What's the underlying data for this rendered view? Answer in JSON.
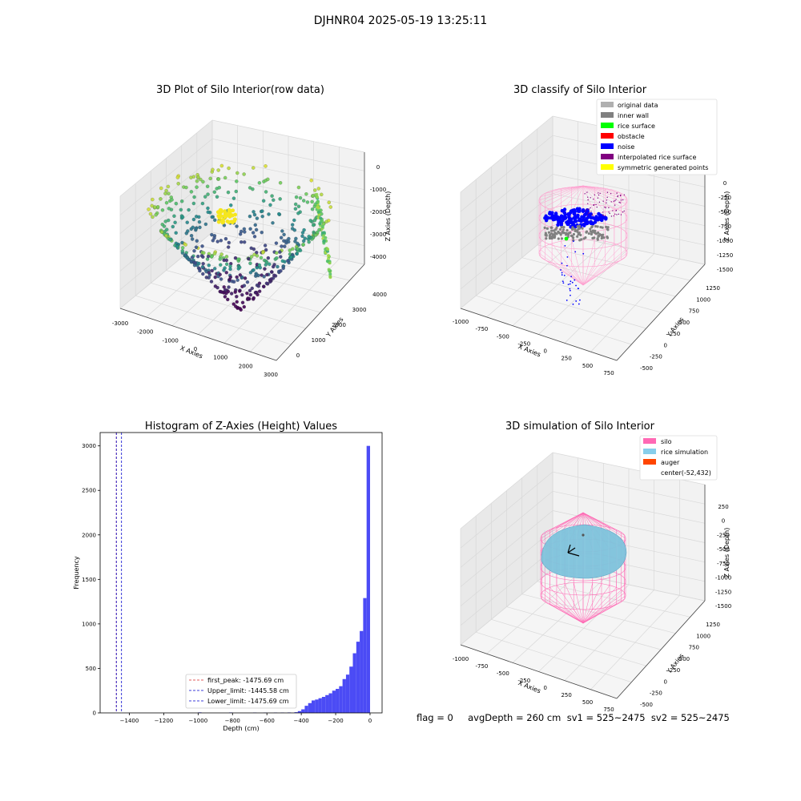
{
  "figure": {
    "suptitle": "DJHNR04 2025-05-19 13:25:11",
    "stats": "flag = 0     avgDepth = 260 cm  sv1 = 525~2475  sv2 = 525~2475"
  },
  "chart_data": [
    {
      "type": "scatter3d",
      "title": "3D Plot of Silo Interior(row data)",
      "xlabel": "X Axies",
      "ylabel": "Y Axies",
      "zlabel": "Z Axies (Depth)",
      "xticks": [
        "-3000",
        "-2000",
        "-1000",
        "0",
        "1000",
        "2000",
        "3000"
      ],
      "yticks": [
        "0",
        "1000",
        "2000",
        "3000",
        "4000"
      ],
      "zticks": [
        "0",
        "-1000",
        "-2000",
        "-3000",
        "-4000"
      ],
      "colormap": "viridis"
    },
    {
      "type": "scatter3d",
      "title": "3D classify of Silo Interior",
      "xlabel": "X Axies",
      "ylabel": "Y Axies",
      "zlabel": "Z Axies (Depth)",
      "xticks": [
        "-1000",
        "-750",
        "-500",
        "-250",
        "0",
        "250",
        "500",
        "750"
      ],
      "yticks": [
        "-500",
        "-250",
        "0",
        "250",
        "500",
        "750",
        "1000",
        "1250"
      ],
      "zticks": [
        "0",
        "-250",
        "-500",
        "-750",
        "-1000",
        "-1250",
        "-1500"
      ],
      "legend": [
        {
          "label": "original data",
          "color": "#b0b0b0"
        },
        {
          "label": "inner wall",
          "color": "#808080"
        },
        {
          "label": "rice surface",
          "color": "#00ff00"
        },
        {
          "label": "obstacle",
          "color": "#ff0000"
        },
        {
          "label": "noise",
          "color": "#0000ff"
        },
        {
          "label": "interpolated rice surface",
          "color": "#800080"
        },
        {
          "label": "symmetric generated points",
          "color": "#ffff00"
        }
      ]
    },
    {
      "type": "bar",
      "title": "Histogram of Z-Axies (Height) Values",
      "xlabel": "Depth (cm)",
      "ylabel": "Frequency",
      "xlim": [
        -1570,
        70
      ],
      "ylim": [
        0,
        3150
      ],
      "xticks": [
        -1400,
        -1200,
        -1000,
        -800,
        -600,
        -400,
        -200,
        0
      ],
      "yticks": [
        0,
        500,
        1000,
        1500,
        2000,
        2500,
        3000
      ],
      "bin_width": 20,
      "bins": [
        {
          "x": -20,
          "count": 3000
        },
        {
          "x": -40,
          "count": 1290
        },
        {
          "x": -60,
          "count": 920
        },
        {
          "x": -80,
          "count": 800
        },
        {
          "x": -100,
          "count": 670
        },
        {
          "x": -120,
          "count": 520
        },
        {
          "x": -140,
          "count": 430
        },
        {
          "x": -160,
          "count": 380
        },
        {
          "x": -180,
          "count": 300
        },
        {
          "x": -200,
          "count": 270
        },
        {
          "x": -220,
          "count": 250
        },
        {
          "x": -240,
          "count": 220
        },
        {
          "x": -260,
          "count": 200
        },
        {
          "x": -280,
          "count": 180
        },
        {
          "x": -300,
          "count": 165
        },
        {
          "x": -320,
          "count": 150
        },
        {
          "x": -340,
          "count": 140
        },
        {
          "x": -360,
          "count": 110
        },
        {
          "x": -380,
          "count": 80
        },
        {
          "x": -400,
          "count": 40
        },
        {
          "x": -420,
          "count": 20
        },
        {
          "x": -440,
          "count": 8
        },
        {
          "x": -480,
          "count": 5
        },
        {
          "x": -520,
          "count": 4
        },
        {
          "x": -560,
          "count": 4
        },
        {
          "x": -620,
          "count": 3
        },
        {
          "x": -680,
          "count": 4
        },
        {
          "x": -820,
          "count": 5
        },
        {
          "x": -1000,
          "count": 6
        }
      ],
      "bar_color": "#4b4bf5",
      "vlines": [
        {
          "x": -1475.69,
          "color": "#d62728",
          "label": "first_peak: -1475.69 cm"
        },
        {
          "x": -1445.58,
          "color": "#0000cc",
          "label": "Upper_limit: -1445.58 cm"
        },
        {
          "x": -1475.69,
          "color": "#0000cc",
          "label": "Lower_limit: -1475.69 cm"
        }
      ],
      "legend_position": "lower-center"
    },
    {
      "type": "surface3d",
      "title": "3D simulation of Silo Interior",
      "xlabel": "X Axies",
      "ylabel": "Y Axies",
      "zlabel": "Z Axies (Depth)",
      "xticks": [
        "-1000",
        "-750",
        "-500",
        "-250",
        "0",
        "250",
        "500",
        "750"
      ],
      "yticks": [
        "-500",
        "-250",
        "0",
        "250",
        "500",
        "750",
        "1000",
        "1250"
      ],
      "zticks": [
        "250",
        "0",
        "-250",
        "-500",
        "-750",
        "-1000",
        "-1250",
        "-1500"
      ],
      "legend": [
        {
          "label": "silo",
          "color": "#ff69b4"
        },
        {
          "label": "rice simulation",
          "color": "#87ceeb"
        },
        {
          "label": "auger",
          "color": "#ff4500"
        },
        {
          "label": "center(-52,432)",
          "color": ""
        }
      ]
    }
  ]
}
